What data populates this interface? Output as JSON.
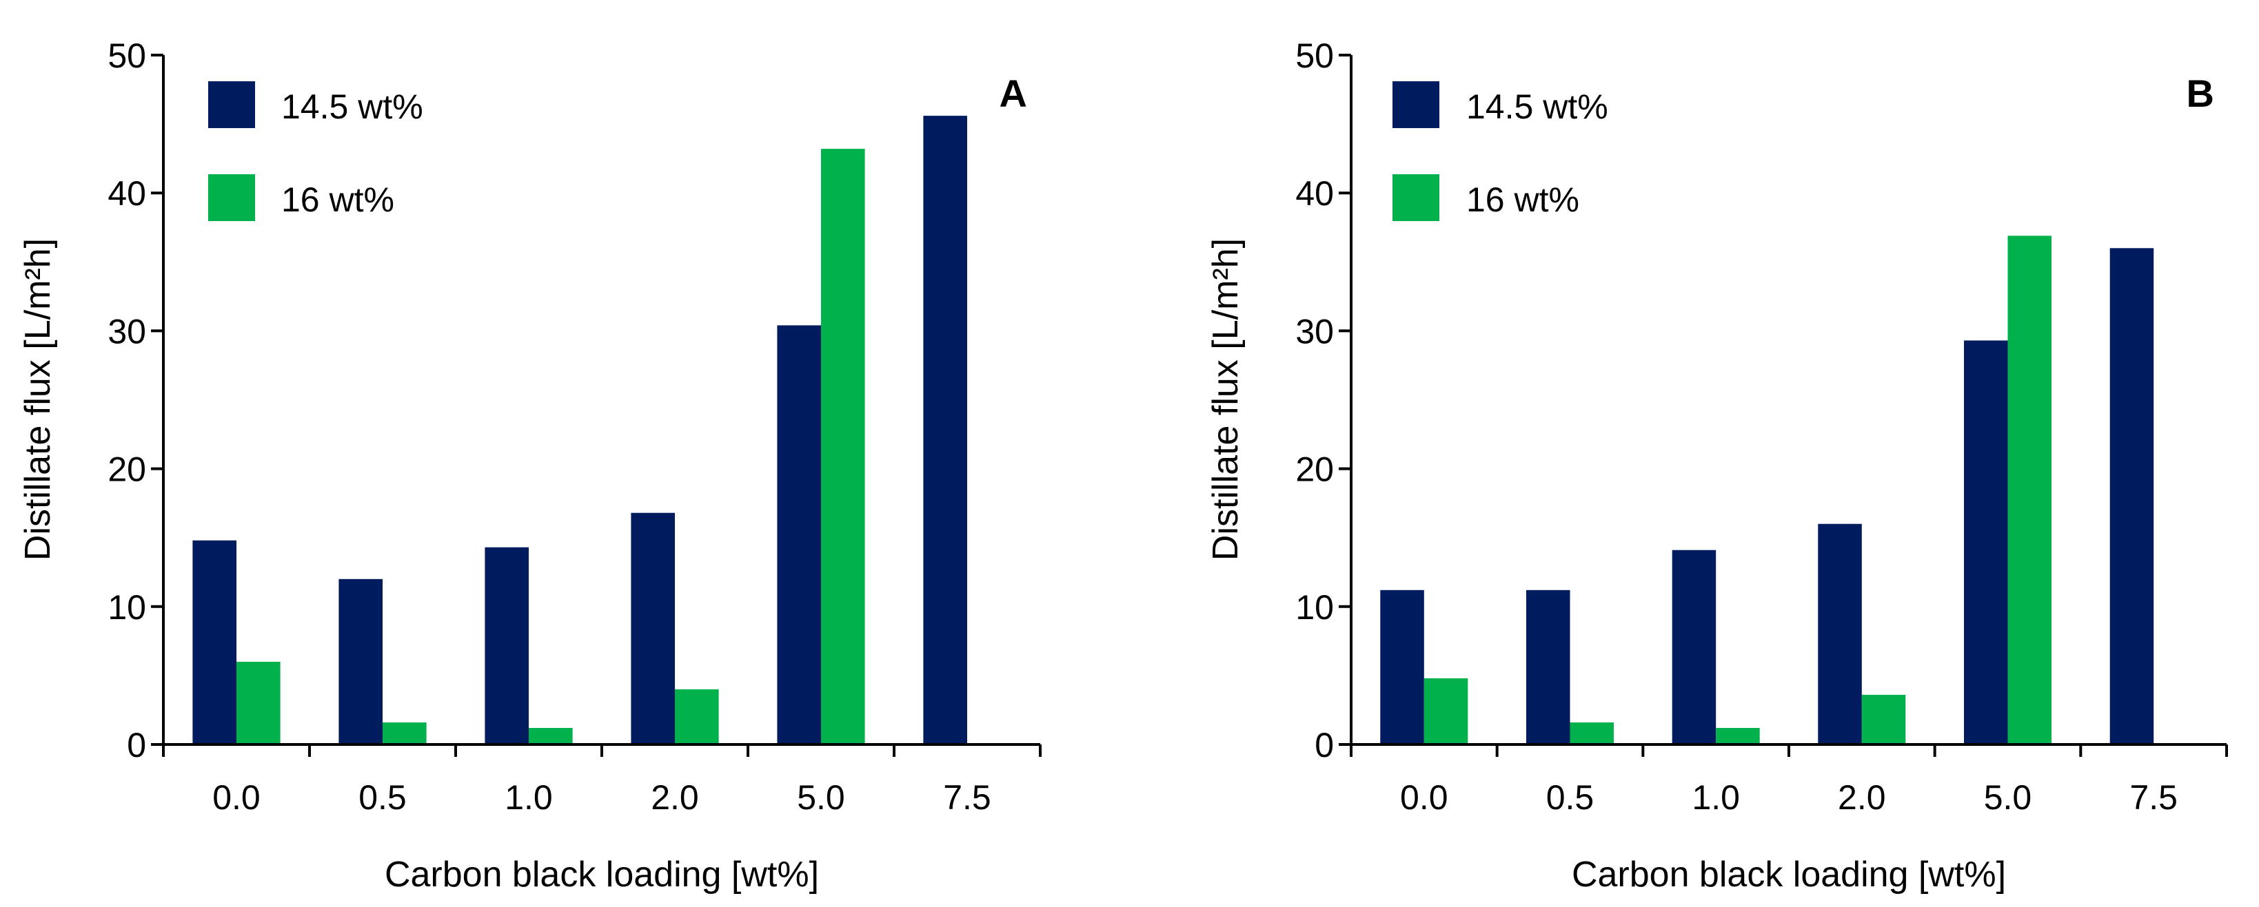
{
  "colors": {
    "series_0": "#001B5E",
    "series_1": "#00B14C",
    "axis": "#000000"
  },
  "chart_data": [
    {
      "type": "bar",
      "panel_label": "A",
      "categories": [
        "0.0",
        "0.5",
        "1.0",
        "2.0",
        "5.0",
        "7.5"
      ],
      "series": [
        {
          "name": "14.5 wt%",
          "values": [
            14.8,
            12.0,
            14.3,
            16.8,
            30.4,
            45.6
          ]
        },
        {
          "name": "16 wt%",
          "values": [
            6.0,
            1.6,
            1.2,
            4.0,
            43.2,
            null
          ]
        }
      ],
      "xlabel": "Carbon black loading [wt%]",
      "ylabel": "Distillate flux [L/m²h]",
      "ylim": [
        0,
        50
      ],
      "yticks": [
        "0",
        "10",
        "20",
        "30",
        "40",
        "50"
      ],
      "legend": "top-left",
      "grid": false
    },
    {
      "type": "bar",
      "panel_label": "B",
      "categories": [
        "0.0",
        "0.5",
        "1.0",
        "2.0",
        "5.0",
        "7.5"
      ],
      "series": [
        {
          "name": "14.5 wt%",
          "values": [
            11.2,
            11.2,
            14.1,
            16.0,
            29.3,
            36.0
          ]
        },
        {
          "name": "16 wt%",
          "values": [
            4.8,
            1.6,
            1.2,
            3.6,
            36.9,
            null
          ]
        }
      ],
      "xlabel": "Carbon black loading [wt%]",
      "ylabel": "Distillate flux [L/m²h]",
      "ylim": [
        0,
        50
      ],
      "yticks": [
        "0",
        "10",
        "20",
        "30",
        "40",
        "50"
      ],
      "legend": "top-left",
      "grid": false
    }
  ]
}
